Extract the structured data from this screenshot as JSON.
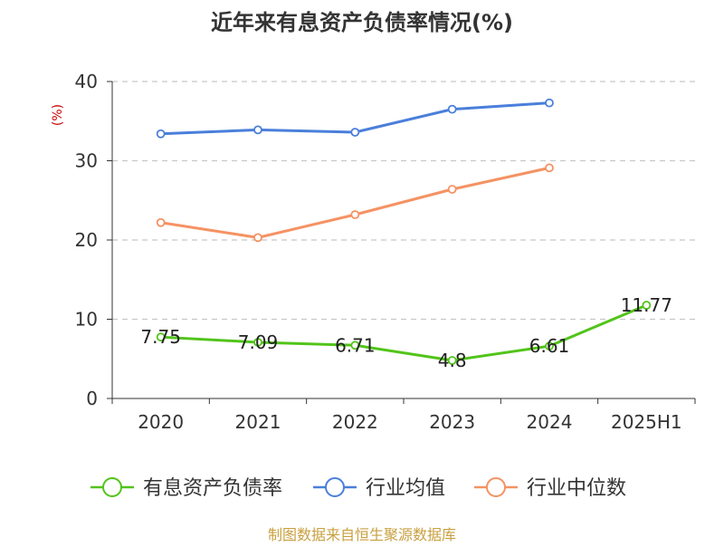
{
  "chart_data": {
    "type": "line",
    "title": "近年来有息资产负债率情况(%)",
    "ylabel": "(%)",
    "xlabel": "",
    "categories": [
      "2020",
      "2021",
      "2022",
      "2023",
      "2024",
      "2025H1"
    ],
    "ylim": [
      0,
      40
    ],
    "yticks": [
      0,
      10,
      20,
      30,
      40
    ],
    "grid": true,
    "legend_position": "bottom",
    "series": [
      {
        "name": "有息资产负债率",
        "color": "#52c41a",
        "values": [
          7.75,
          7.09,
          6.71,
          4.8,
          6.61,
          11.77
        ],
        "labels": [
          "7.75",
          "7.09",
          "6.71",
          "4.8",
          "6.61",
          "11.77"
        ]
      },
      {
        "name": "行业均值",
        "color": "#4a7fdb",
        "values": [
          33.4,
          33.9,
          33.6,
          36.5,
          37.3,
          null
        ]
      },
      {
        "name": "行业中位数",
        "color": "#f59263",
        "values": [
          22.2,
          20.3,
          23.2,
          26.4,
          29.1,
          null
        ]
      }
    ],
    "source": "制图数据来自恒生聚源数据库"
  }
}
